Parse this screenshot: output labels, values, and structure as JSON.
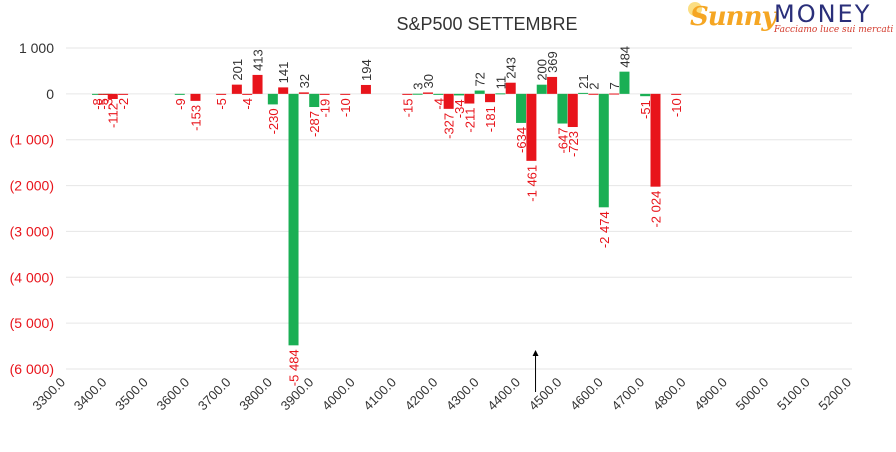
{
  "logo": {
    "brand_left": "Sunny",
    "brand_right": "MONEY",
    "tagline": "Facciamo luce sui mercati"
  },
  "colors": {
    "positive": "#1aaf54",
    "negative": "#e8141b",
    "grid": "#e6e6e6",
    "axis_text": "#333333",
    "negative_text": "#e8141b"
  },
  "chart_data": {
    "type": "bar",
    "title": "S&P500 SETTEMBRE",
    "xlabel": "",
    "ylabel": "",
    "ylim": [
      -6000,
      1000
    ],
    "y_ticks": [
      {
        "value": 1000,
        "label": "1 000"
      },
      {
        "value": 0,
        "label": "0"
      },
      {
        "value": -1000,
        "label": "(1 000)"
      },
      {
        "value": -2000,
        "label": "(2 000)"
      },
      {
        "value": -3000,
        "label": "(3 000)"
      },
      {
        "value": -4000,
        "label": "(4 000)"
      },
      {
        "value": -5000,
        "label": "(5 000)"
      },
      {
        "value": -6000,
        "label": "(6 000)"
      }
    ],
    "x_range": [
      3300,
      5200
    ],
    "x_ticks": [
      "3300.0",
      "3400.0",
      "3500.0",
      "3600.0",
      "3700.0",
      "3800.0",
      "3900.0",
      "4000.0",
      "4100.0",
      "4200.0",
      "4300.0",
      "4400.0",
      "4500.0",
      "4600.0",
      "4700.0",
      "4800.0",
      "4900.0",
      "5000.0",
      "5100.0",
      "5200.0"
    ],
    "grid": true,
    "marker": {
      "x": 4435,
      "description": "arrow"
    },
    "series": [
      {
        "color": "#1aaf54",
        "points": [
          {
            "x": 3375,
            "value": -8,
            "label": "-8"
          },
          {
            "x": 3400,
            "value": -3,
            "label": "-3"
          },
          {
            "x": 3575,
            "value": -9,
            "label": "-9"
          },
          {
            "x": 3800,
            "value": -230,
            "label": "-230"
          },
          {
            "x": 3850,
            "value": -5484,
            "label": "-5 484"
          },
          {
            "x": 3900,
            "value": -287,
            "label": "-287"
          },
          {
            "x": 4150,
            "value": 3,
            "label": "3"
          },
          {
            "x": 4200,
            "value": -4,
            "label": "-4"
          },
          {
            "x": 4250,
            "value": -34,
            "label": "-34"
          },
          {
            "x": 4300,
            "value": 72,
            "label": "72"
          },
          {
            "x": 4350,
            "value": 11,
            "label": "11"
          },
          {
            "x": 4400,
            "value": -634,
            "label": "-634"
          },
          {
            "x": 4450,
            "value": 200,
            "label": "200"
          },
          {
            "x": 4500,
            "value": -647,
            "label": "-647"
          },
          {
            "x": 4550,
            "value": 21,
            "label": "21"
          },
          {
            "x": 4600,
            "value": -2474,
            "label": "-2 474"
          },
          {
            "x": 4650,
            "value": 484,
            "label": "484"
          },
          {
            "x": 4700,
            "value": -51,
            "label": "-51"
          }
        ]
      },
      {
        "color": "#e8141b",
        "points": [
          {
            "x": 3390,
            "value": -5,
            "label": "-5"
          },
          {
            "x": 3413,
            "value": -112,
            "label": "-112"
          },
          {
            "x": 3438,
            "value": -2,
            "label": "-2"
          },
          {
            "x": 3613,
            "value": -153,
            "label": "-153"
          },
          {
            "x": 3675,
            "value": -5,
            "label": "-5"
          },
          {
            "x": 3713,
            "value": 201,
            "label": "201"
          },
          {
            "x": 3738,
            "value": -4,
            "label": "-4"
          },
          {
            "x": 3763,
            "value": 413,
            "label": "413"
          },
          {
            "x": 3825,
            "value": 141,
            "label": "141"
          },
          {
            "x": 3875,
            "value": 32,
            "label": "32"
          },
          {
            "x": 3925,
            "value": -19,
            "label": "-19"
          },
          {
            "x": 3975,
            "value": -10,
            "label": "-10"
          },
          {
            "x": 4025,
            "value": 194,
            "label": "194"
          },
          {
            "x": 4125,
            "value": -15,
            "label": "-15"
          },
          {
            "x": 4175,
            "value": 30,
            "label": "30"
          },
          {
            "x": 4225,
            "value": -327,
            "label": "-327"
          },
          {
            "x": 4275,
            "value": -211,
            "label": "-211"
          },
          {
            "x": 4325,
            "value": -181,
            "label": "-181"
          },
          {
            "x": 4375,
            "value": 243,
            "label": "243"
          },
          {
            "x": 4425,
            "value": -1461,
            "label": "-1 461"
          },
          {
            "x": 4475,
            "value": 369,
            "label": "369"
          },
          {
            "x": 4525,
            "value": -723,
            "label": "-723"
          },
          {
            "x": 4575,
            "value": 2,
            "label": "2"
          },
          {
            "x": 4625,
            "value": 7,
            "label": "7"
          },
          {
            "x": 4725,
            "value": -2024,
            "label": "-2 024"
          },
          {
            "x": 4775,
            "value": -10,
            "label": "-10"
          }
        ]
      }
    ]
  }
}
